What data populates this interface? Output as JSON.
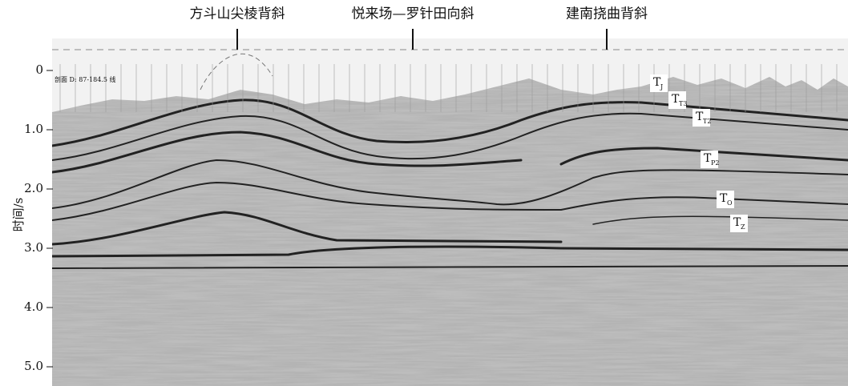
{
  "header": {
    "labels": [
      "方斗山尖棱背斜",
      "悦来场—罗针田向斜",
      "建南挠曲背斜"
    ]
  },
  "profile_label": "剖面 D: 87-184.5 线",
  "axis": {
    "title": "时间/s",
    "ticks": [
      "0",
      "1.0",
      "2.0",
      "3.0",
      "4.0",
      "5.0"
    ]
  },
  "horizons": [
    {
      "base": "T",
      "sub": "J"
    },
    {
      "base": "T",
      "sub": "T3"
    },
    {
      "base": "T",
      "sub": "T2"
    },
    {
      "base": "T",
      "sub": "P2"
    },
    {
      "base": "T",
      "sub": "O"
    },
    {
      "base": "T",
      "sub": "Z"
    }
  ]
}
